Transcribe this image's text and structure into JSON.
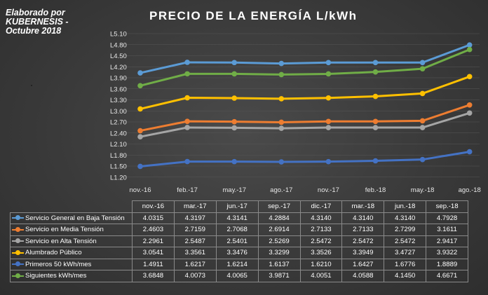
{
  "credit": {
    "line1": "Elaborado por",
    "line2": "KUBERNESIS -",
    "line3": "Octubre 2018"
  },
  "chart_data": {
    "type": "line",
    "title": "PRECIO DE LA ENERGÍA L/kWh",
    "xlabel": "",
    "ylabel": "",
    "ylim": [
      1.1,
      5.1
    ],
    "y_ticks": [
      "L1.20",
      "L1.50",
      "L1.80",
      "L2.10",
      "L2.40",
      "L2.70",
      "L3.00",
      "L3.30",
      "L3.60",
      "L3.90",
      "L4.20",
      "L4.50",
      "L4.80",
      "L5.10"
    ],
    "y_tick_values": [
      1.2,
      1.5,
      1.8,
      2.1,
      2.4,
      2.7,
      3.0,
      3.3,
      3.6,
      3.9,
      4.2,
      4.5,
      4.8,
      5.1
    ],
    "x_axis_labels": [
      "nov.-16",
      "feb.-17",
      "may.-17",
      "ago.-17",
      "nov.-17",
      "feb.-18",
      "may.-18",
      "ago.-18"
    ],
    "categories": [
      "nov.-16",
      "mar.-17",
      "jun.-17",
      "sep.-17",
      "dic.-17",
      "mar.-18",
      "jun.-18",
      "sep.-18"
    ],
    "series": [
      {
        "name": "Servicio General en Baja Tensión",
        "color": "#5b9bd5",
        "values": [
          "4.0315",
          "4.3197",
          "4.3141",
          "4.2884",
          "4.3140",
          "4.3140",
          "4.3140",
          "4.7928"
        ]
      },
      {
        "name": "Servicio en Media Tensión",
        "color": "#ed7d31",
        "values": [
          "2.4603",
          "2.7159",
          "2.7068",
          "2.6914",
          "2.7133",
          "2.7133",
          "2.7299",
          "3.1611"
        ]
      },
      {
        "name": "Servicio en Alta Tensión",
        "color": "#a5a5a5",
        "values": [
          "2.2961",
          "2.5487",
          "2.5401",
          "2.5269",
          "2.5472",
          "2.5472",
          "2.5472",
          "2.9417"
        ]
      },
      {
        "name": "Alumbrado Público",
        "color": "#ffc000",
        "values": [
          "3.0541",
          "3.3561",
          "3.3476",
          "3.3299",
          "3.3526",
          "3.3949",
          "3.4727",
          "3.9322"
        ]
      },
      {
        "name": "Primeros 50 kWh/mes",
        "color": "#4472c4",
        "values": [
          "1.4911",
          "1.6217",
          "1.6214",
          "1.6137",
          "1.6210",
          "1.6427",
          "1.6776",
          "1.8889"
        ]
      },
      {
        "name": "Siguientes kWh/mes",
        "color": "#70ad47",
        "values": [
          "3.6848",
          "4.0073",
          "4.0065",
          "3.9871",
          "4.0051",
          "4.0588",
          "4.1450",
          "4.6671"
        ]
      }
    ]
  }
}
